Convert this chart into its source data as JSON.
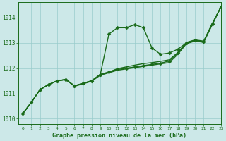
{
  "title": "Graphe pression niveau de la mer (hPa)",
  "xlim": [
    -0.5,
    23
  ],
  "ylim": [
    1009.8,
    1014.6
  ],
  "xticks": [
    0,
    1,
    2,
    3,
    4,
    5,
    6,
    7,
    8,
    9,
    10,
    11,
    12,
    13,
    14,
    15,
    16,
    17,
    18,
    19,
    20,
    21,
    22,
    23
  ],
  "yticks": [
    1010,
    1011,
    1012,
    1013,
    1014
  ],
  "bg_color": "#cce8e8",
  "grid_color": "#99cccc",
  "line_color": "#1a6b1a",
  "markersize": 2.5,
  "linewidth": 1.0,
  "curves_with_markers": [
    [
      1010.2,
      1010.65,
      1011.15,
      1011.35,
      1011.5,
      1011.55,
      1011.3,
      1011.4,
      1011.5,
      1011.75,
      1013.35,
      1013.6,
      1013.6,
      1013.72,
      1013.6,
      1012.8,
      1012.55,
      1012.6,
      1012.75,
      1013.0,
      1013.1,
      1013.05,
      1013.75,
      1014.42
    ],
    [
      1010.2,
      1010.65,
      1011.15,
      1011.35,
      1011.5,
      1011.55,
      1011.3,
      1011.4,
      1011.5,
      1011.75,
      1011.85,
      1011.95,
      1012.0,
      1012.05,
      1012.1,
      1012.15,
      1012.2,
      1012.28,
      1012.6,
      1013.0,
      1013.1,
      1013.05,
      1013.75,
      1014.42
    ]
  ],
  "curves_no_markers": [
    [
      1010.2,
      1010.65,
      1011.15,
      1011.35,
      1011.5,
      1011.55,
      1011.3,
      1011.4,
      1011.5,
      1011.75,
      1011.85,
      1011.98,
      1012.05,
      1012.12,
      1012.18,
      1012.22,
      1012.27,
      1012.33,
      1012.62,
      1013.02,
      1013.12,
      1013.07,
      1013.77,
      1014.42
    ],
    [
      1010.2,
      1010.65,
      1011.15,
      1011.35,
      1011.5,
      1011.55,
      1011.28,
      1011.38,
      1011.48,
      1011.72,
      1011.82,
      1011.92,
      1011.97,
      1012.02,
      1012.07,
      1012.12,
      1012.17,
      1012.22,
      1012.55,
      1012.97,
      1013.07,
      1013.02,
      1013.72,
      1014.42
    ]
  ]
}
